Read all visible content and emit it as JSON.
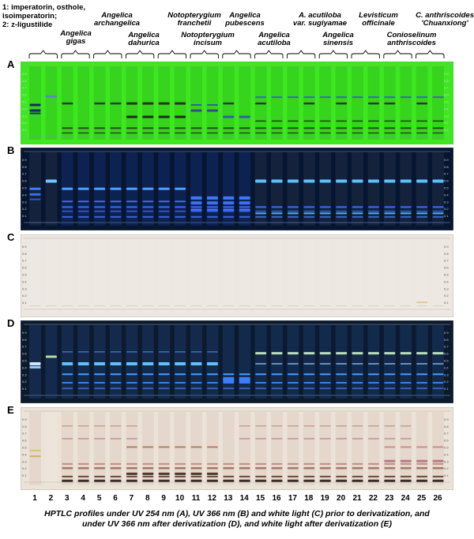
{
  "legend": {
    "line1": "1: imperatorin, osthole,",
    "line2": "isoimperatorin;",
    "line3": "2: z-ligustilide"
  },
  "groups": [
    {
      "name": "Angelica\ngigas",
      "lanes": [
        3,
        4
      ]
    },
    {
      "name": "Angelica\narchangelica",
      "lanes": [
        5,
        6
      ]
    },
    {
      "name": "Angelica\ndahurica",
      "lanes": [
        7,
        8
      ]
    },
    {
      "name": "Notopterygium\nfranchetii",
      "lanes": [
        9,
        10
      ]
    },
    {
      "name": "Notopterygium\nincisum",
      "lanes": [
        11,
        12
      ]
    },
    {
      "name": "Angelica\npubescens",
      "lanes": [
        13,
        14
      ]
    },
    {
      "name": "Angelica\nacutiloba",
      "lanes": [
        15,
        16
      ]
    },
    {
      "name": "A. acutiloba\nvar. sugiyamae",
      "lanes": [
        17,
        18
      ]
    },
    {
      "name": "Angelica\nsinensis",
      "lanes": [
        19,
        20
      ]
    },
    {
      "name": "Levisticum\nofficinale",
      "lanes": [
        21,
        22
      ]
    },
    {
      "name": "Conioselinum\nanthriscoides",
      "lanes": [
        23,
        24
      ]
    },
    {
      "name": "C. anthriscoides\n'Chuanxiong'",
      "lanes": [
        25,
        26
      ]
    }
  ],
  "plates": [
    {
      "label": "A",
      "bg": "#3ee81f"
    },
    {
      "label": "B",
      "bg": "#061530"
    },
    {
      "label": "C",
      "bg": "#ece7e1"
    },
    {
      "label": "D",
      "bg": "#0c1a2e"
    },
    {
      "label": "E",
      "bg": "#ece3d8"
    }
  ],
  "rf_ticks": [
    "0.9",
    "0.8",
    "0.7",
    "0.6",
    "0.5",
    "0.4",
    "0.3",
    "0.2",
    "0.1"
  ],
  "lane_numbers": [
    "1",
    "2",
    "3",
    "4",
    "5",
    "6",
    "7",
    "8",
    "9",
    "10",
    "11",
    "12",
    "13",
    "14",
    "15",
    "16",
    "17",
    "18",
    "19",
    "20",
    "21",
    "22",
    "23",
    "24",
    "25",
    "26"
  ],
  "caption": {
    "line1": "HPTLC profiles under UV 254 nm (A), UV 366 nm (B) and white light (C) prior to derivatization, and",
    "line2": "under UV 366 nm after derivatization (D), and white light after derivatization (E)"
  }
}
